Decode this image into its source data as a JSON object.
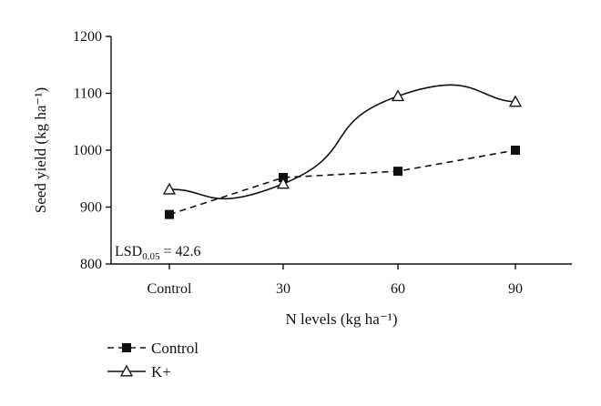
{
  "chart_data": {
    "type": "line",
    "categories": [
      "Control",
      "30",
      "60",
      "90"
    ],
    "series": [
      {
        "name": "Control",
        "values": [
          887,
          952,
          963,
          1000
        ],
        "marker": "square-filled",
        "line": "dashed",
        "color": "#111111"
      },
      {
        "name": "K+",
        "values": [
          931,
          941,
          1095,
          1085
        ],
        "marker": "triangle-open",
        "line": "solid",
        "smooth": true,
        "color": "#111111"
      }
    ],
    "ylim": [
      800,
      1200
    ],
    "yticks": [
      800,
      900,
      1000,
      1100,
      1200
    ],
    "ytick_labels": [
      "800",
      "900",
      "1000",
      "1100",
      "1200"
    ],
    "xlabel": "N levels (kg ha⁻¹)",
    "ylabel": "Seed yield (kg ha⁻¹)",
    "annotation": {
      "base": "LSD",
      "sub": "0.05",
      "rest": " = 42.6"
    },
    "grid": false,
    "legend_position": "bottom-left"
  }
}
